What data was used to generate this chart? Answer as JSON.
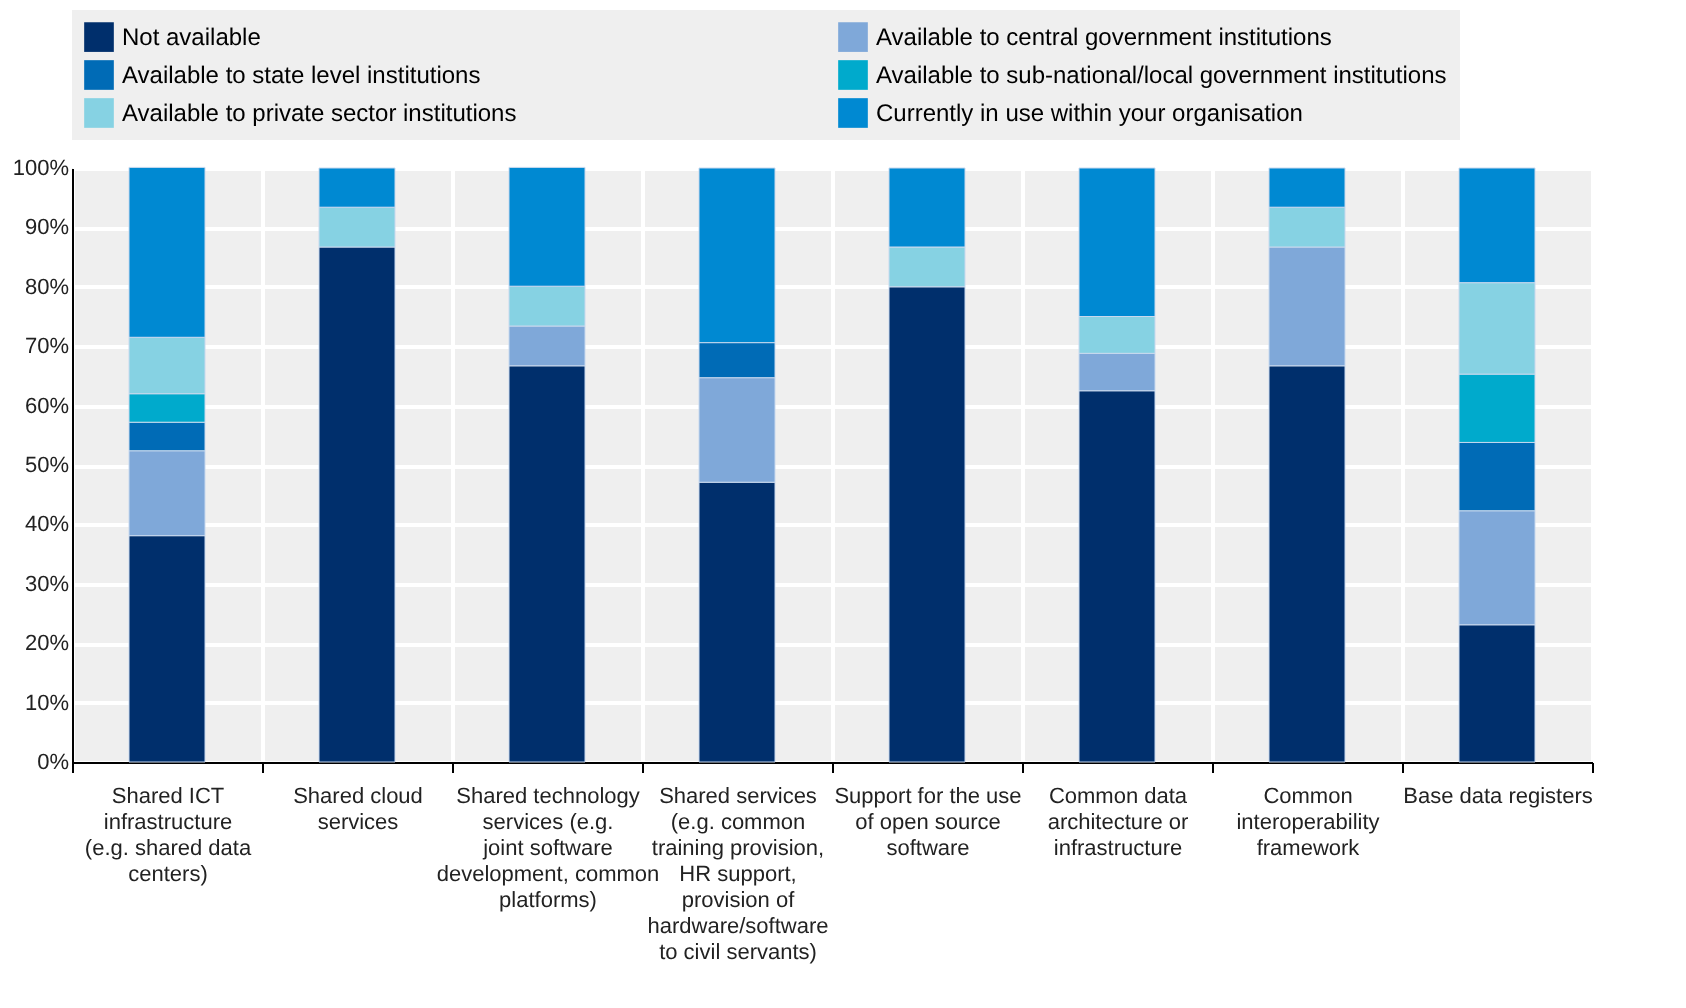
{
  "chart_data": {
    "type": "bar",
    "stacked": true,
    "categories": [
      "Shared ICT infrastructure (e.g. shared data centers)",
      "Shared cloud services",
      "Shared technology services (e.g. joint software development, common platforms)",
      "Shared services (e.g. common training provision, HR support, provision of hardware/software to civil servants)",
      "Support for the use of open source software",
      "Common data architecture or infrastructure",
      "Common interoperability framework",
      "Base data registers"
    ],
    "series": [
      {
        "name": "Not available",
        "color": "#002f6c",
        "values": [
          38.1,
          86.7,
          66.7,
          47.1,
          80.0,
          62.5,
          66.7,
          23.1
        ]
      },
      {
        "name": "Available to central government institutions",
        "color": "#7fa8d9",
        "values": [
          14.3,
          null,
          6.7,
          17.6,
          null,
          6.3,
          20.0,
          19.2
        ]
      },
      {
        "name": "Available to state level institutions",
        "color": "#006bb6",
        "values": [
          4.8,
          null,
          null,
          5.9,
          null,
          null,
          null,
          11.5
        ]
      },
      {
        "name": "Available to sub-national/local government institutions",
        "color": "#00aacc",
        "values": [
          4.8,
          null,
          null,
          null,
          null,
          null,
          null,
          11.5
        ]
      },
      {
        "name": "Available to private sector institutions",
        "color": "#86d2e3",
        "values": [
          9.5,
          6.7,
          6.7,
          null,
          6.7,
          6.2,
          6.7,
          15.4
        ]
      },
      {
        "name": "Currently in use within your organisation",
        "color": "#0089d2",
        "values": [
          28.6,
          6.6,
          20.0,
          29.4,
          13.3,
          25.0,
          6.6,
          19.3
        ]
      }
    ],
    "ylim": [
      0,
      100
    ],
    "yticks": [
      {
        "value": 0,
        "label": "0%"
      },
      {
        "value": 10,
        "label": "10%"
      },
      {
        "value": 20,
        "label": "20%"
      },
      {
        "value": 30,
        "label": "30%"
      },
      {
        "value": 40,
        "label": "40%"
      },
      {
        "value": 50,
        "label": "50%"
      },
      {
        "value": 60,
        "label": "60%"
      },
      {
        "value": 70,
        "label": "70%"
      },
      {
        "value": 80,
        "label": "80%"
      },
      {
        "value": 90,
        "label": "90%"
      },
      {
        "value": 100,
        "label": "100%"
      }
    ],
    "grid": true,
    "legend": "top"
  }
}
